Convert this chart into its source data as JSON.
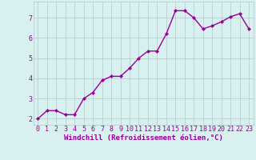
{
  "x": [
    0,
    1,
    2,
    3,
    4,
    5,
    6,
    7,
    8,
    9,
    10,
    11,
    12,
    13,
    14,
    15,
    16,
    17,
    18,
    19,
    20,
    21,
    22,
    23
  ],
  "y": [
    2.0,
    2.4,
    2.4,
    2.2,
    2.2,
    3.0,
    3.3,
    3.9,
    4.1,
    4.1,
    4.5,
    5.0,
    5.35,
    5.35,
    6.2,
    7.35,
    7.35,
    7.0,
    6.45,
    6.6,
    6.8,
    7.05,
    7.2,
    6.45
  ],
  "line_color": "#990099",
  "marker": "D",
  "markersize": 2.0,
  "linewidth": 1.0,
  "bg_color": "#d8f0f0",
  "grid_color": "#b0c8c8",
  "xlabel": "Windchill (Refroidissement éolien,°C)",
  "xlabel_color": "#990099",
  "xlabel_fontsize": 6.5,
  "tick_color": "#990099",
  "tick_fontsize": 6.0,
  "ytick_labels": [
    "2",
    "3",
    "4",
    "5",
    "6",
    "7"
  ],
  "ytick_values": [
    2,
    3,
    4,
    5,
    6,
    7
  ],
  "xlim": [
    -0.5,
    23.5
  ],
  "ylim": [
    1.7,
    7.8
  ]
}
